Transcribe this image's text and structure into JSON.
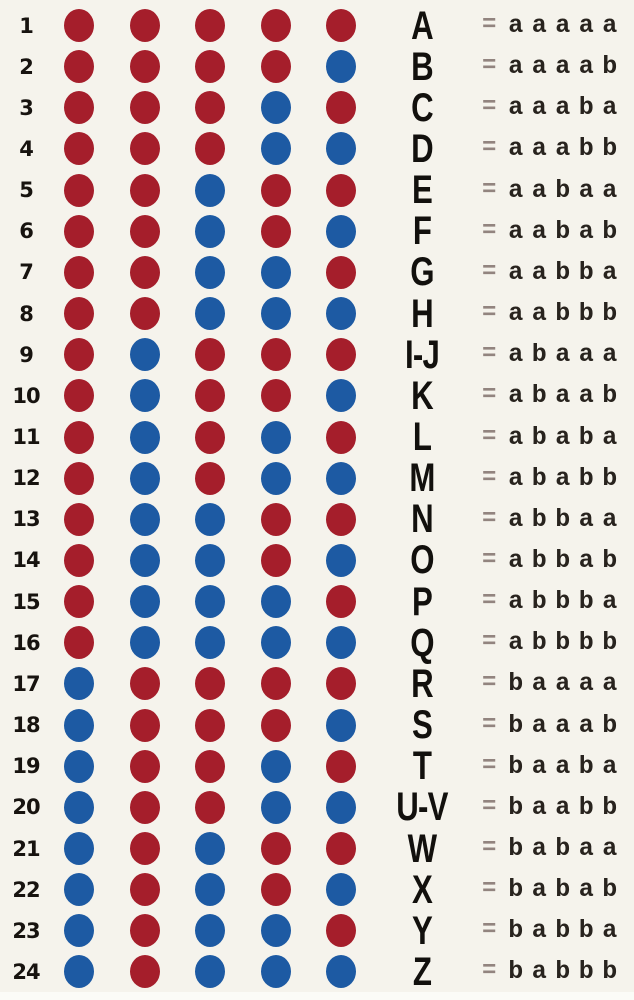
{
  "page": {
    "background": "#f5f3ec",
    "bottom_strip_color": "#fbfbf7"
  },
  "colors": {
    "dot_a_red": "#a51e2b",
    "dot_b_blue": "#1d5aa3",
    "row_number": "#17130f",
    "letter": "#12100d",
    "code_text": "#28231e",
    "equals_sign": "#92847f"
  },
  "symbols": {
    "equals": "="
  },
  "dot_legend": {
    "a": "red",
    "b": "blue"
  },
  "cipher": {
    "rows": [
      {
        "num": "1",
        "letter": "A",
        "code": "aaaaa"
      },
      {
        "num": "2",
        "letter": "B",
        "code": "aaaab"
      },
      {
        "num": "3",
        "letter": "C",
        "code": "aaaba"
      },
      {
        "num": "4",
        "letter": "D",
        "code": "aaabb"
      },
      {
        "num": "5",
        "letter": "E",
        "code": "aabaa"
      },
      {
        "num": "6",
        "letter": "F",
        "code": "aabab"
      },
      {
        "num": "7",
        "letter": "G",
        "code": "aabba"
      },
      {
        "num": "8",
        "letter": "H",
        "code": "aabbb"
      },
      {
        "num": "9",
        "letter": "I-J",
        "code": "abaaa"
      },
      {
        "num": "10",
        "letter": "K",
        "code": "abaab"
      },
      {
        "num": "11",
        "letter": "L",
        "code": "ababa"
      },
      {
        "num": "12",
        "letter": "M",
        "code": "ababb"
      },
      {
        "num": "13",
        "letter": "N",
        "code": "abbaa"
      },
      {
        "num": "14",
        "letter": "O",
        "code": "abbab"
      },
      {
        "num": "15",
        "letter": "P",
        "code": "abbba"
      },
      {
        "num": "16",
        "letter": "Q",
        "code": "abbbb"
      },
      {
        "num": "17",
        "letter": "R",
        "code": "baaaa"
      },
      {
        "num": "18",
        "letter": "S",
        "code": "baaab"
      },
      {
        "num": "19",
        "letter": "T",
        "code": "baaba"
      },
      {
        "num": "20",
        "letter": "U-V",
        "code": "baabb"
      },
      {
        "num": "21",
        "letter": "W",
        "code": "babaa"
      },
      {
        "num": "22",
        "letter": "X",
        "code": "babab"
      },
      {
        "num": "23",
        "letter": "Y",
        "code": "babba"
      },
      {
        "num": "24",
        "letter": "Z",
        "code": "babbb"
      }
    ]
  }
}
